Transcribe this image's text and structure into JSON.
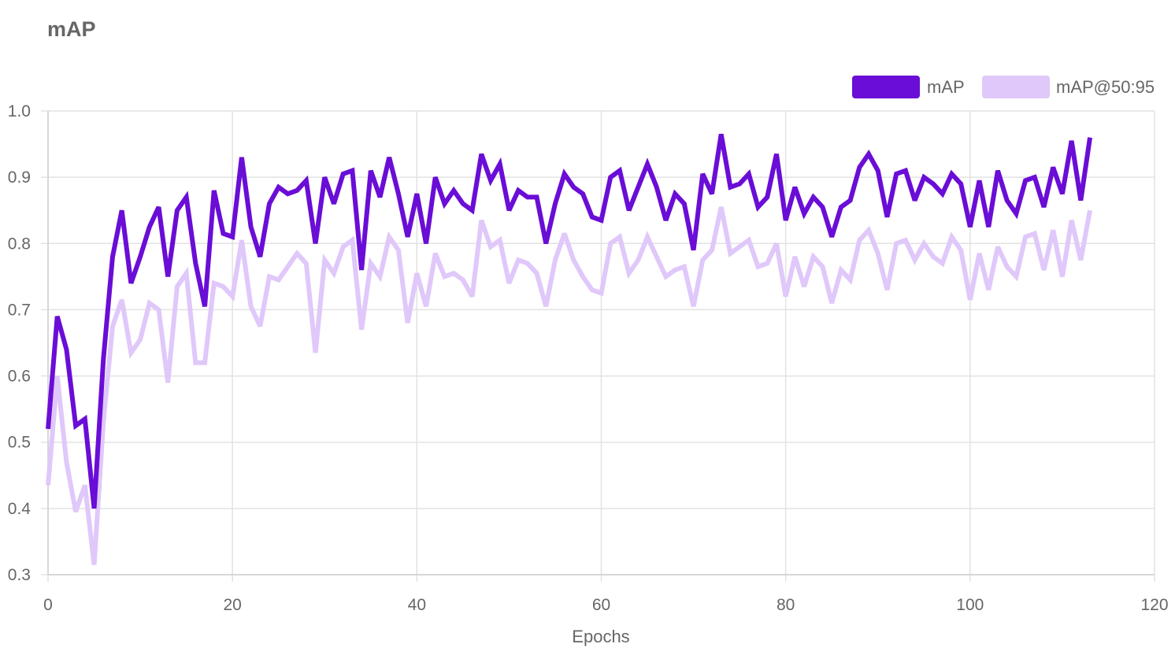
{
  "chart_data": {
    "type": "line",
    "title": "mAP",
    "xlabel": "Epochs",
    "ylabel": "",
    "xlim": [
      0,
      120
    ],
    "ylim": [
      0.3,
      1.0
    ],
    "xticks": [
      0,
      20,
      40,
      60,
      80,
      100,
      120
    ],
    "yticks": [
      0.3,
      0.4,
      0.5,
      0.6,
      0.7,
      0.8,
      0.9,
      1.0
    ],
    "grid": true,
    "legend": "top-right",
    "series": [
      {
        "name": "mAP",
        "color": "#6a0dd6",
        "values": [
          0.52,
          0.69,
          0.64,
          0.525,
          0.535,
          0.4,
          0.625,
          0.78,
          0.85,
          0.74,
          0.78,
          0.825,
          0.855,
          0.75,
          0.85,
          0.87,
          0.77,
          0.705,
          0.88,
          0.815,
          0.81,
          0.93,
          0.825,
          0.78,
          0.86,
          0.885,
          0.875,
          0.88,
          0.895,
          0.8,
          0.9,
          0.86,
          0.905,
          0.91,
          0.76,
          0.91,
          0.87,
          0.93,
          0.875,
          0.81,
          0.875,
          0.8,
          0.9,
          0.86,
          0.88,
          0.86,
          0.85,
          0.935,
          0.895,
          0.92,
          0.85,
          0.88,
          0.87,
          0.87,
          0.8,
          0.86,
          0.905,
          0.885,
          0.875,
          0.84,
          0.835,
          0.9,
          0.91,
          0.85,
          0.885,
          0.92,
          0.885,
          0.835,
          0.875,
          0.86,
          0.79,
          0.905,
          0.875,
          0.965,
          0.885,
          0.89,
          0.905,
          0.855,
          0.87,
          0.935,
          0.835,
          0.885,
          0.845,
          0.87,
          0.855,
          0.81,
          0.855,
          0.865,
          0.915,
          0.935,
          0.91,
          0.84,
          0.905,
          0.91,
          0.865,
          0.9,
          0.89,
          0.875,
          0.905,
          0.89,
          0.825,
          0.895,
          0.825,
          0.91,
          0.865,
          0.845,
          0.895,
          0.9,
          0.855,
          0.915,
          0.875,
          0.955,
          0.865,
          0.96
        ]
      },
      {
        "name": "mAP@50:95",
        "color": "#e0c8fa",
        "values": [
          0.435,
          0.6,
          0.47,
          0.395,
          0.435,
          0.315,
          0.53,
          0.675,
          0.715,
          0.635,
          0.655,
          0.71,
          0.7,
          0.59,
          0.735,
          0.755,
          0.62,
          0.62,
          0.74,
          0.735,
          0.72,
          0.805,
          0.705,
          0.675,
          0.75,
          0.745,
          0.765,
          0.785,
          0.77,
          0.635,
          0.775,
          0.755,
          0.795,
          0.805,
          0.67,
          0.77,
          0.75,
          0.81,
          0.79,
          0.68,
          0.755,
          0.705,
          0.785,
          0.75,
          0.755,
          0.745,
          0.72,
          0.835,
          0.795,
          0.805,
          0.74,
          0.775,
          0.77,
          0.755,
          0.705,
          0.775,
          0.815,
          0.775,
          0.75,
          0.73,
          0.725,
          0.8,
          0.81,
          0.755,
          0.775,
          0.81,
          0.78,
          0.75,
          0.76,
          0.765,
          0.705,
          0.775,
          0.79,
          0.855,
          0.785,
          0.795,
          0.805,
          0.765,
          0.77,
          0.8,
          0.72,
          0.78,
          0.735,
          0.78,
          0.765,
          0.71,
          0.76,
          0.745,
          0.805,
          0.82,
          0.785,
          0.73,
          0.8,
          0.805,
          0.775,
          0.8,
          0.78,
          0.77,
          0.81,
          0.79,
          0.715,
          0.785,
          0.73,
          0.795,
          0.765,
          0.75,
          0.81,
          0.815,
          0.76,
          0.82,
          0.75,
          0.835,
          0.775,
          0.85
        ]
      }
    ]
  }
}
